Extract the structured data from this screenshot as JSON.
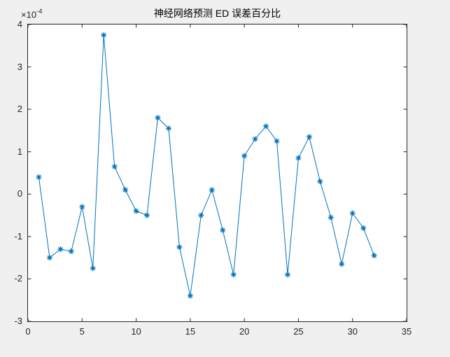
{
  "figure": {
    "background_color": "#f0f0f0",
    "plot_background_color": "#ffffff",
    "axis_color": "#262626",
    "title": "神经网络预测 ED 误差百分比",
    "y_exponent": {
      "base": "×10",
      "exp": "-4"
    }
  },
  "chart_data": {
    "type": "line",
    "title": "神经网络预测 ED 误差百分比",
    "marker": "asterisk",
    "line_color": "#0072BD",
    "grid": false,
    "legend": null,
    "xlabel": "",
    "ylabel": "",
    "y_unit_multiplier": "1e-4",
    "xlim": [
      0,
      35
    ],
    "ylim": [
      -3,
      4
    ],
    "x_ticks": [
      0,
      5,
      10,
      15,
      20,
      25,
      30,
      35
    ],
    "y_ticks": [
      -3,
      -2,
      -1,
      0,
      1,
      2,
      3,
      4
    ],
    "x": [
      1,
      2,
      3,
      4,
      5,
      6,
      7,
      8,
      9,
      10,
      11,
      12,
      13,
      14,
      15,
      16,
      17,
      18,
      19,
      20,
      21,
      22,
      23,
      24,
      25,
      26,
      27,
      28,
      29,
      30,
      31,
      32
    ],
    "y": [
      0.4,
      -1.5,
      -1.3,
      -1.35,
      -0.3,
      -1.75,
      3.75,
      0.65,
      0.1,
      -0.4,
      -0.5,
      1.8,
      1.55,
      -1.25,
      -2.4,
      -0.5,
      0.1,
      -0.85,
      -1.9,
      0.9,
      1.3,
      1.6,
      1.25,
      -1.9,
      0.85,
      1.35,
      0.3,
      -0.55,
      -1.65,
      -0.45,
      -0.8,
      -1.45
    ]
  }
}
